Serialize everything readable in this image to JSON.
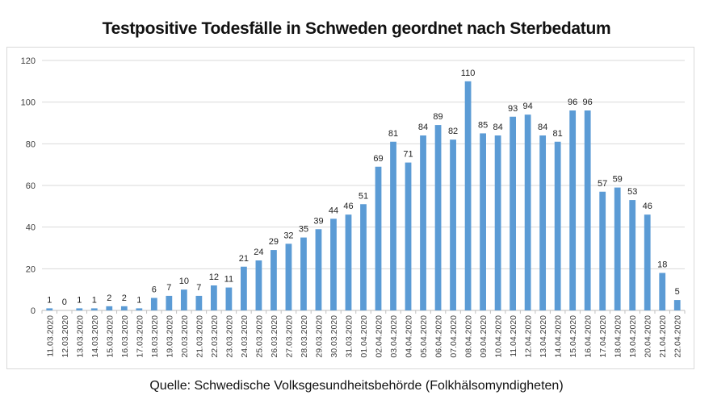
{
  "chart_data": {
    "type": "bar",
    "title": "Testpositive Todesfälle in Schweden geordnet nach Sterbedatum",
    "source": "Quelle: Schwedische Volksgesundheitsbehörde (Folkhälsomyndigheten)",
    "xlabel": "",
    "ylabel": "",
    "ylim": [
      0,
      120
    ],
    "yticks": [
      0,
      20,
      40,
      60,
      80,
      100,
      120
    ],
    "grid": true,
    "legend": "none",
    "bar_color": "#5b9bd5",
    "categories": [
      "11.03.2020",
      "12.03.2020",
      "13.03.2020",
      "14.03.2020",
      "15.03.2020",
      "16.03.2020",
      "17.03.2020",
      "18.03.2020",
      "19.03.2020",
      "20.03.2020",
      "21.03.2020",
      "22.03.2020",
      "23.03.2020",
      "24.03.2020",
      "25.03.2020",
      "26.03.2020",
      "27.03.2020",
      "28.03.2020",
      "29.03.2020",
      "30.03.2020",
      "31.03.2020",
      "01.04.2020",
      "02.04.2020",
      "03.04.2020",
      "04.04.2020",
      "05.04.2020",
      "06.04.2020",
      "07.04.2020",
      "08.04.2020",
      "09.04.2020",
      "10.04.2020",
      "11.04.2020",
      "12.04.2020",
      "13.04.2020",
      "14.04.2020",
      "15.04.2020",
      "16.04.2020",
      "17.04.2020",
      "18.04.2020",
      "19.04.2020",
      "20.04.2020",
      "21.04.2020",
      "22.04.2020"
    ],
    "values": [
      1,
      0,
      1,
      1,
      2,
      2,
      1,
      6,
      7,
      10,
      7,
      12,
      11,
      21,
      24,
      29,
      32,
      35,
      39,
      44,
      46,
      51,
      69,
      81,
      71,
      84,
      89,
      82,
      110,
      85,
      84,
      93,
      94,
      84,
      81,
      96,
      96,
      57,
      59,
      53,
      46,
      18,
      5
    ]
  }
}
